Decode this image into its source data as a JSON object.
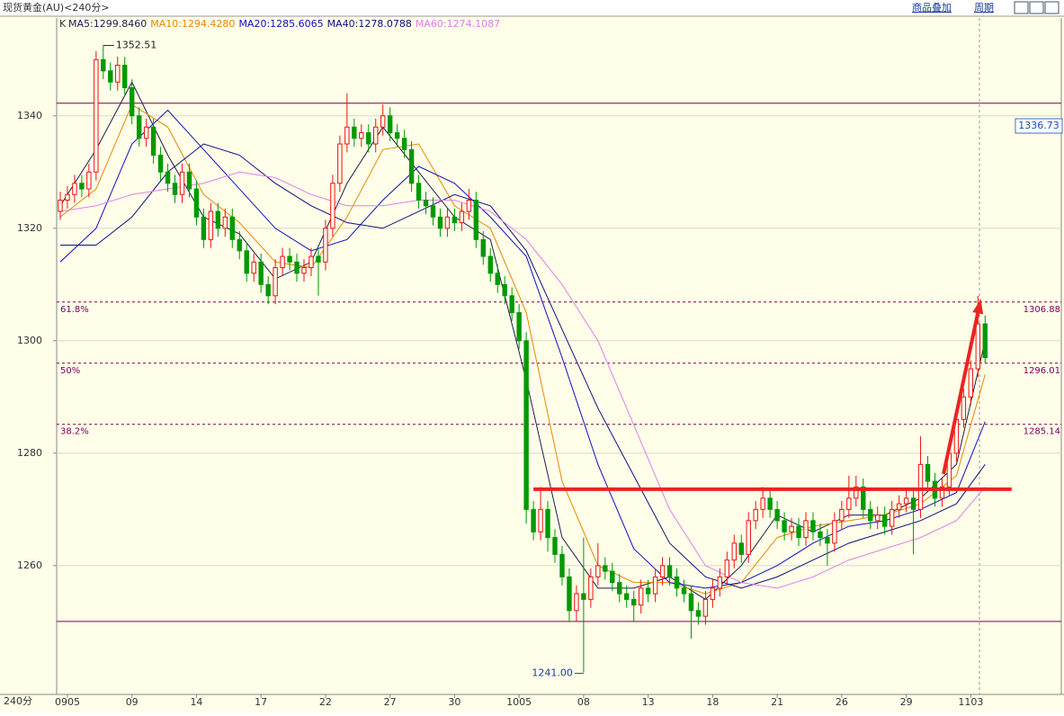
{
  "toolbar": {
    "title": "现货黄金(AU)<240分>",
    "buttons": [
      "商品叠加",
      "周期"
    ]
  },
  "chart_data": {
    "type": "candlestick",
    "k_label": "K",
    "period_label": "240分",
    "cursor_price": "1336.73",
    "ylim": [
      1237.1,
      1357.4
    ],
    "yticks": [
      1260,
      1280,
      1300,
      1320,
      1340
    ],
    "xlim": [
      -0.5,
      139
    ],
    "xticks": [
      {
        "value": 1,
        "label": "0905"
      },
      {
        "value": 10,
        "label": "09"
      },
      {
        "value": 19,
        "label": "14"
      },
      {
        "value": 28,
        "label": "17"
      },
      {
        "value": 37,
        "label": "22"
      },
      {
        "value": 46,
        "label": "27"
      },
      {
        "value": 55,
        "label": "30"
      },
      {
        "value": 64,
        "label": "1005"
      },
      {
        "value": 73,
        "label": "08"
      },
      {
        "value": 82,
        "label": "13"
      },
      {
        "value": 91,
        "label": "18"
      },
      {
        "value": 100,
        "label": "21"
      },
      {
        "value": 109,
        "label": "26"
      },
      {
        "value": 118,
        "label": "29"
      },
      {
        "value": 127,
        "label": "1103"
      }
    ],
    "grid": true,
    "up_color": "#ee1111",
    "down_color": "#009900",
    "candles": {
      "open": [
        1323,
        1325,
        1326,
        1328,
        1327,
        1330,
        1350,
        1348,
        1346,
        1349,
        1345,
        1340,
        1336,
        1338,
        1333,
        1330,
        1328,
        1326,
        1330,
        1327,
        1322,
        1318,
        1323,
        1320,
        1322,
        1318,
        1316,
        1312,
        1314,
        1310,
        1308,
        1313,
        1315,
        1314,
        1312,
        1313,
        1315,
        1314,
        1320,
        1328,
        1335,
        1338,
        1336,
        1337,
        1335,
        1338,
        1340,
        1337,
        1336,
        1334,
        1328,
        1325,
        1324,
        1322,
        1320,
        1322,
        1321,
        1323,
        1325,
        1318,
        1315,
        1312,
        1310,
        1308,
        1305,
        1300,
        1270,
        1266,
        1270,
        1265,
        1262,
        1258,
        1252,
        1255,
        1254,
        1258,
        1260,
        1259,
        1257,
        1255,
        1254,
        1253,
        1256,
        1255,
        1258,
        1260,
        1258,
        1256,
        1255,
        1252,
        1251,
        1254,
        1256,
        1258,
        1261,
        1264,
        1262,
        1268,
        1270,
        1272,
        1270,
        1268,
        1266,
        1267,
        1265,
        1268,
        1266,
        1265,
        1264,
        1268,
        1270,
        1272,
        1274,
        1270,
        1268,
        1269,
        1267,
        1270,
        1271,
        1272,
        1270,
        1278,
        1275,
        1272,
        1274,
        1280,
        1286,
        1290,
        1295,
        1303
      ],
      "high": [
        1326.5,
        1327.5,
        1329.5,
        1329.5,
        1331.5,
        1351.5,
        1352.51,
        1349.5,
        1350.5,
        1350.5,
        1346.5,
        1341.5,
        1339.5,
        1339.5,
        1334.5,
        1331.5,
        1329.5,
        1331.5,
        1331.5,
        1328.5,
        1323.5,
        1324.5,
        1324.5,
        1323.5,
        1323.5,
        1319.5,
        1317.5,
        1315.5,
        1315.5,
        1311.5,
        1314.5,
        1316.5,
        1316.5,
        1315.5,
        1314.5,
        1316.5,
        1316.5,
        1321.5,
        1329.5,
        1336.5,
        1344,
        1339.5,
        1338.5,
        1338.5,
        1339.5,
        1342,
        1341.5,
        1338.5,
        1337.5,
        1335.5,
        1329.5,
        1326.5,
        1325.5,
        1323.5,
        1323.5,
        1323.5,
        1324.5,
        1327,
        1326.5,
        1319.5,
        1316.5,
        1313.5,
        1311.5,
        1309.5,
        1306.5,
        1301.5,
        1271.5,
        1274,
        1271.5,
        1266.5,
        1263.5,
        1259.5,
        1256.5,
        1265,
        1259.5,
        1264,
        1261.5,
        1260.5,
        1258.5,
        1256.5,
        1255.5,
        1257.5,
        1257.5,
        1259.5,
        1261.5,
        1261.5,
        1259.5,
        1257.5,
        1256.5,
        1253.5,
        1255.5,
        1257.5,
        1259.5,
        1262.5,
        1265.5,
        1265.5,
        1269.5,
        1271.5,
        1274,
        1273.5,
        1271.5,
        1269.5,
        1268.5,
        1268.5,
        1269.5,
        1269.5,
        1267.5,
        1266.5,
        1269.5,
        1271.5,
        1276,
        1276,
        1275.5,
        1271.5,
        1270.5,
        1270.5,
        1271.5,
        1272.5,
        1273.5,
        1273.5,
        1283,
        1279.5,
        1276.5,
        1275.5,
        1281.5,
        1287.5,
        1291.5,
        1296.5,
        1308,
        1304.5
      ],
      "low": [
        1321.5,
        1323.5,
        1324.5,
        1325.5,
        1325.5,
        1328.5,
        1346.5,
        1344.5,
        1344.5,
        1343.5,
        1338.5,
        1334.5,
        1334.5,
        1331.5,
        1328.5,
        1326.5,
        1324.5,
        1324.5,
        1325.5,
        1320.5,
        1316.5,
        1316.5,
        1318.5,
        1318.5,
        1316.5,
        1314.5,
        1310.5,
        1310.5,
        1308.5,
        1306.5,
        1306.5,
        1311.5,
        1312.5,
        1310.5,
        1310.5,
        1311.5,
        1308,
        1312.5,
        1318.5,
        1326.5,
        1333.5,
        1334.5,
        1334.5,
        1333.5,
        1333.5,
        1336.5,
        1335.5,
        1334.5,
        1332.5,
        1326.5,
        1323.5,
        1322.5,
        1320.5,
        1318.5,
        1318.5,
        1319.5,
        1319.5,
        1321.5,
        1316.5,
        1313.5,
        1310.5,
        1308.5,
        1306.5,
        1303.5,
        1298.5,
        1267.5,
        1264.5,
        1264.5,
        1262.5,
        1260.5,
        1256.5,
        1250,
        1250,
        1241,
        1252.5,
        1256.5,
        1257.5,
        1255.5,
        1253.5,
        1252.5,
        1250,
        1251.5,
        1253.5,
        1253.5,
        1256.5,
        1256.5,
        1254.5,
        1253.5,
        1247,
        1249.5,
        1249.5,
        1252.5,
        1254.5,
        1256.5,
        1259.5,
        1260.5,
        1260.5,
        1266.5,
        1268.5,
        1268.5,
        1266.5,
        1264.5,
        1264.5,
        1263.5,
        1263.5,
        1264.5,
        1263.5,
        1260,
        1262.5,
        1266.5,
        1268.5,
        1270.5,
        1268.5,
        1266.5,
        1266.5,
        1265.5,
        1265.5,
        1268.5,
        1269.5,
        1262,
        1268.5,
        1273.5,
        1270.5,
        1270.5,
        1272.5,
        1278.5,
        1284.5,
        1288.5,
        1293.5,
        1296
      ],
      "close": [
        1325,
        1326,
        1328,
        1327,
        1330,
        1350,
        1348,
        1346,
        1349,
        1345,
        1340,
        1336,
        1338,
        1333,
        1330,
        1328,
        1326,
        1330,
        1327,
        1322,
        1318,
        1323,
        1320,
        1322,
        1318,
        1316,
        1312,
        1314,
        1310,
        1308,
        1313,
        1315,
        1314,
        1312,
        1313,
        1315,
        1314,
        1320,
        1328,
        1335,
        1338,
        1336,
        1337,
        1335,
        1338,
        1340,
        1337,
        1336,
        1334,
        1328,
        1325,
        1324,
        1322,
        1320,
        1322,
        1321,
        1323,
        1325,
        1318,
        1315,
        1312,
        1310,
        1308,
        1305,
        1300,
        1270,
        1266,
        1270,
        1265,
        1262,
        1258,
        1252,
        1255,
        1254,
        1258,
        1260,
        1259,
        1257,
        1255,
        1254,
        1253,
        1256,
        1255,
        1258,
        1260,
        1258,
        1256,
        1255,
        1252,
        1251,
        1254,
        1256,
        1258,
        1261,
        1264,
        1262,
        1268,
        1270,
        1272,
        1270,
        1268,
        1266,
        1267,
        1265,
        1268,
        1266,
        1265,
        1264,
        1268,
        1270,
        1272,
        1274,
        1270,
        1268,
        1269,
        1267,
        1270,
        1271,
        1272,
        1270,
        1278,
        1275,
        1272,
        1274,
        1280,
        1286,
        1290,
        1295,
        1303,
        1297
      ]
    },
    "series": [
      {
        "name": "MA5:1299.8460",
        "color": "#1c1c50",
        "x": [
          0,
          5,
          10,
          15,
          20,
          25,
          30,
          35,
          40,
          45,
          50,
          55,
          60,
          65,
          70,
          75,
          80,
          85,
          90,
          95,
          100,
          105,
          110,
          115,
          120,
          125,
          129
        ],
        "values": [
          1324,
          1334,
          1346,
          1333,
          1322,
          1319,
          1311,
          1314,
          1328,
          1338,
          1330,
          1322,
          1318,
          1293,
          1265,
          1256,
          1256,
          1258,
          1254,
          1260,
          1269,
          1266,
          1269,
          1269,
          1272,
          1278,
          1300
        ]
      },
      {
        "name": "MA10:1294.4280",
        "color": "#e88a00",
        "x": [
          0,
          5,
          10,
          15,
          20,
          25,
          30,
          35,
          40,
          45,
          50,
          55,
          60,
          65,
          70,
          75,
          80,
          85,
          90,
          95,
          100,
          105,
          110,
          115,
          120,
          125,
          129
        ],
        "values": [
          1322,
          1327,
          1342,
          1338,
          1326,
          1321,
          1314,
          1313,
          1322,
          1334,
          1335,
          1324,
          1320,
          1305,
          1275,
          1260,
          1257,
          1257,
          1255,
          1257,
          1265,
          1267,
          1268,
          1269,
          1271,
          1276,
          1294
        ]
      },
      {
        "name": "MA20:1285.6065",
        "color": "#1010c8",
        "x": [
          0,
          5,
          10,
          15,
          20,
          25,
          30,
          35,
          40,
          45,
          50,
          55,
          60,
          65,
          70,
          75,
          80,
          85,
          90,
          95,
          100,
          105,
          110,
          115,
          120,
          125,
          129
        ],
        "values": [
          1314,
          1320,
          1335,
          1341,
          1334,
          1327,
          1320,
          1316,
          1318,
          1325,
          1331,
          1328,
          1322,
          1315,
          1297,
          1278,
          1263,
          1257,
          1256,
          1257,
          1260,
          1264,
          1267,
          1268,
          1270,
          1273,
          1285.6
        ]
      },
      {
        "name": "MA40:1278.0788",
        "color": "#101080",
        "x": [
          0,
          5,
          10,
          15,
          20,
          25,
          30,
          35,
          40,
          45,
          50,
          55,
          60,
          65,
          70,
          75,
          80,
          85,
          90,
          95,
          100,
          105,
          110,
          115,
          120,
          125,
          129
        ],
        "values": [
          1317,
          1317,
          1322,
          1330,
          1335,
          1333,
          1328,
          1324,
          1321,
          1320,
          1323,
          1326,
          1324,
          1316,
          1302,
          1288,
          1276,
          1264,
          1258,
          1256,
          1258,
          1261,
          1264,
          1266,
          1268,
          1271,
          1278
        ]
      },
      {
        "name": "MA60:1274.1087",
        "color": "#e080e8",
        "x": [
          0,
          5,
          10,
          15,
          20,
          25,
          30,
          35,
          40,
          45,
          50,
          55,
          60,
          65,
          70,
          75,
          80,
          85,
          90,
          95,
          100,
          105,
          110,
          115,
          120,
          125,
          129
        ],
        "values": [
          1323,
          1324,
          1326,
          1327,
          1328,
          1330,
          1329,
          1326,
          1324,
          1324,
          1325,
          1325,
          1323,
          1318,
          1310,
          1300,
          1285,
          1270,
          1260,
          1257,
          1256,
          1258,
          1261,
          1263,
          1265,
          1268,
          1274
        ]
      }
    ],
    "hlines": [
      1342.24,
      1250.08
    ],
    "levels": [
      {
        "value": 1306.88,
        "ratio": "61.8%"
      },
      {
        "value": 1296.01,
        "ratio": "50%"
      },
      {
        "value": 1285.14,
        "ratio": "38.2%"
      }
    ],
    "trend_line": {
      "x": [
        66,
        132.7
      ],
      "y": [
        1273.6,
        1273.6
      ],
      "color": "#ee2222"
    },
    "arrow": {
      "x": [
        123.2,
        128.4
      ],
      "y": [
        1276.3,
        1307.4
      ],
      "color": "#ee2222"
    },
    "high_mark": {
      "x": 6,
      "value": 1352.51
    },
    "low_mark": {
      "x": 73,
      "value": 1241,
      "label": "1241.00"
    }
  }
}
